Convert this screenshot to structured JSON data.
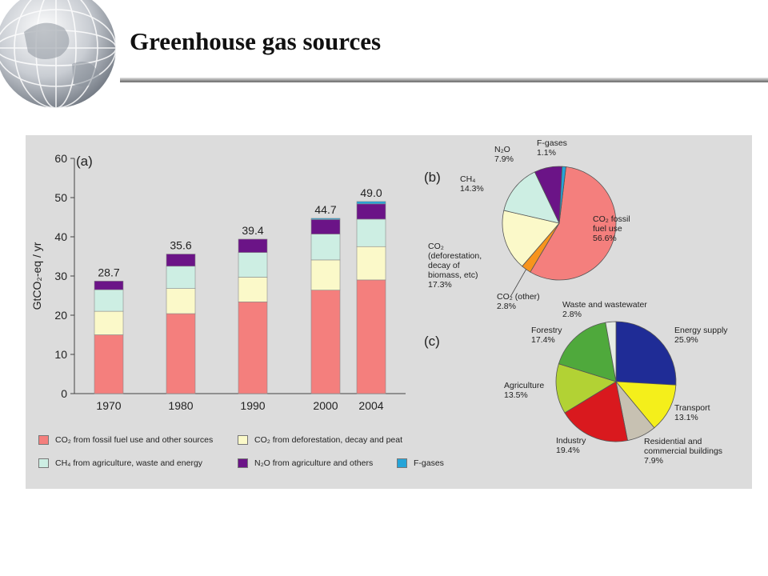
{
  "slide": {
    "title": "Greenhouse gas sources"
  },
  "chart_data": [
    {
      "type": "bar",
      "panel_label": "(a)",
      "ylabel": "GtCO₂-eq / yr",
      "ylim": [
        0,
        60
      ],
      "yticks": [
        0,
        10,
        20,
        30,
        40,
        50,
        60
      ],
      "categories": [
        "1970",
        "1980",
        "1990",
        "2000",
        "2004"
      ],
      "totals": [
        "28.7",
        "35.6",
        "39.4",
        "44.7",
        "49.0"
      ],
      "stacked": true,
      "grid": false,
      "legend_position": "bottom",
      "series": [
        {
          "name": "CO₂ from fossil fuel use and other sources",
          "color": "#f47f7d",
          "values": [
            15.0,
            20.4,
            23.4,
            26.4,
            29.0
          ]
        },
        {
          "name": "CO₂ from deforestation, decay and peat",
          "color": "#fbf9c9",
          "values": [
            6.0,
            6.4,
            6.3,
            7.7,
            8.5
          ]
        },
        {
          "name": "CH₄ from agriculture, waste and energy",
          "color": "#cdeee3",
          "values": [
            5.5,
            5.7,
            6.3,
            6.6,
            7.0
          ]
        },
        {
          "name": "N₂O from agriculture and others",
          "color": "#6b1487",
          "values": [
            2.2,
            3.1,
            3.4,
            3.7,
            3.9
          ]
        },
        {
          "name": "F-gases",
          "color": "#25a4d8",
          "values": [
            0.0,
            0.0,
            0.0,
            0.3,
            0.6
          ]
        }
      ]
    },
    {
      "type": "pie",
      "panel_label": "(b)",
      "slices": [
        {
          "label": "CO₂ fossil fuel use",
          "value": "56.6%",
          "share": 56.6,
          "color": "#f47f7d"
        },
        {
          "label": "CO₂ (other)",
          "value": "2.8%",
          "share": 2.8,
          "color": "#f7941d"
        },
        {
          "label": "CO₂ (deforestation, decay of biomass, etc)",
          "value": "17.3%",
          "share": 17.3,
          "color": "#fbf9c9"
        },
        {
          "label": "CH₄",
          "value": "14.3%",
          "share": 14.3,
          "color": "#cdeee3"
        },
        {
          "label": "N₂O",
          "value": "7.9%",
          "share": 7.9,
          "color": "#6b1487"
        },
        {
          "label": "F-gases",
          "value": "1.1%",
          "share": 1.1,
          "color": "#25a4d8"
        }
      ]
    },
    {
      "type": "pie",
      "panel_label": "(c)",
      "slices": [
        {
          "label": "Energy supply",
          "value": "25.9%",
          "share": 25.9,
          "color": "#1f2c96"
        },
        {
          "label": "Transport",
          "value": "13.1%",
          "share": 13.1,
          "color": "#f4ef1b"
        },
        {
          "label": "Residential and commercial buildings",
          "value": "7.9%",
          "share": 7.9,
          "color": "#c7c1b2"
        },
        {
          "label": "Industry",
          "value": "19.4%",
          "share": 19.4,
          "color": "#d9191e"
        },
        {
          "label": "Agriculture",
          "value": "13.5%",
          "share": 13.5,
          "color": "#b2d234"
        },
        {
          "label": "Forestry",
          "value": "17.4%",
          "share": 17.4,
          "color": "#4fa93c"
        },
        {
          "label": "Waste and wastewater",
          "value": "2.8%",
          "share": 2.8,
          "color": "#e6ece4"
        }
      ]
    }
  ]
}
